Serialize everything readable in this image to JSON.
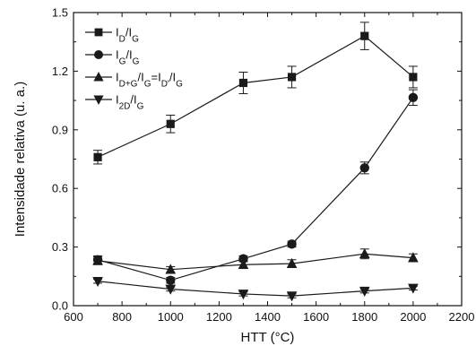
{
  "chart_data": {
    "type": "line",
    "xlabel": "HTT (°C)",
    "ylabel": "Intensidade relativa (u. a.)",
    "xlim": [
      600,
      2200
    ],
    "ylim": [
      0.0,
      1.5
    ],
    "x_ticks": [
      600,
      800,
      1000,
      1200,
      1400,
      1600,
      1800,
      2000,
      2200
    ],
    "x_tick_labels": [
      "600",
      "800",
      "1000",
      "1200",
      "1400",
      "1600",
      "1800",
      "2000",
      "2200"
    ],
    "y_ticks": [
      0.0,
      0.3,
      0.6,
      0.9,
      1.2,
      1.5
    ],
    "y_tick_labels": [
      "0.0",
      "0.3",
      "0.6",
      "0.9",
      "1.2",
      "1.5"
    ],
    "grid": false,
    "legend_position": "top-left",
    "x": [
      700,
      1000,
      1300,
      1500,
      1800,
      2000
    ],
    "series": [
      {
        "name": "ID/IG",
        "label_parts": [
          [
            "I",
            ""
          ],
          [
            "D",
            "sub"
          ],
          [
            "/I",
            ""
          ],
          [
            "G",
            "sub"
          ]
        ],
        "marker": "square",
        "values": [
          0.76,
          0.93,
          1.14,
          1.17,
          1.38,
          1.17
        ],
        "errors": [
          0.035,
          0.045,
          0.055,
          0.055,
          0.07,
          0.055
        ]
      },
      {
        "name": "IG/IG",
        "label_parts": [
          [
            "I",
            ""
          ],
          [
            "G",
            "sub"
          ],
          [
            "/I",
            ""
          ],
          [
            "G",
            "sub"
          ]
        ],
        "marker": "circle",
        "values": [
          0.235,
          0.13,
          0.24,
          0.315,
          0.705,
          1.065
        ],
        "errors": [
          0.02,
          0.015,
          0.015,
          0.015,
          0.03,
          0.04
        ]
      },
      {
        "name": "ID+G/IG=ID'/IG",
        "label_parts": [
          [
            "I",
            ""
          ],
          [
            "D+G",
            "sub"
          ],
          [
            "/I",
            ""
          ],
          [
            "G",
            "sub"
          ],
          [
            "=I",
            ""
          ],
          [
            "D'",
            "sub"
          ],
          [
            "/I",
            ""
          ],
          [
            "G",
            "sub"
          ]
        ],
        "marker": "triangle-up",
        "values": [
          0.23,
          0.185,
          0.21,
          0.215,
          0.265,
          0.245
        ],
        "errors": [
          0.02,
          0.015,
          0.02,
          0.02,
          0.025,
          0.02
        ]
      },
      {
        "name": "I2D/IG",
        "label_parts": [
          [
            "I",
            ""
          ],
          [
            "2D",
            "sub"
          ],
          [
            "/I",
            ""
          ],
          [
            "G",
            "sub"
          ]
        ],
        "marker": "triangle-down",
        "values": [
          0.125,
          0.085,
          0.06,
          0.05,
          0.075,
          0.09
        ],
        "errors": [
          0.01,
          0.01,
          0.01,
          0.01,
          0.01,
          0.01
        ]
      }
    ]
  },
  "colors": {
    "series": "#1a1a1a",
    "axis": "#111111",
    "background": "#ffffff"
  }
}
